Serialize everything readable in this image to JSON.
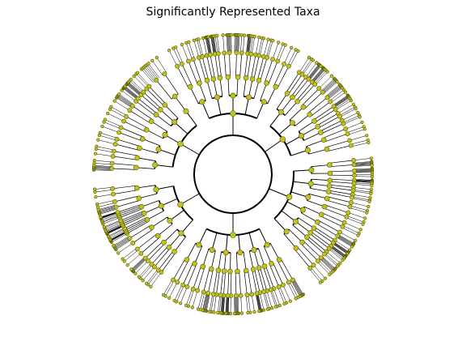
{
  "figure": {
    "title": "Significantly Represented Taxa"
  },
  "style": {
    "node_fill": "#c2c21f",
    "node_stroke": "#555500",
    "edge_color": "#000000",
    "background": "#ffffff"
  },
  "tree": {
    "layout": "radial-cladogram",
    "node_shape": "circle",
    "highlighted_edges": "thick",
    "phyla": [
      {
        "angle": 300,
        "span": 58,
        "classes": [
          3,
          4,
          3,
          5,
          2
        ]
      },
      {
        "angle": 0,
        "span": 58,
        "classes": [
          4,
          5,
          4,
          6,
          3
        ]
      },
      {
        "angle": 55,
        "span": 46,
        "classes": [
          5,
          4,
          7,
          3
        ]
      },
      {
        "angle": 112,
        "span": 60,
        "classes": [
          3,
          5,
          4,
          4,
          6,
          3
        ]
      },
      {
        "angle": 180,
        "span": 62,
        "classes": [
          4,
          6,
          3,
          5,
          4,
          3
        ]
      },
      {
        "angle": 240,
        "span": 50,
        "classes": [
          5,
          3,
          12,
          4
        ]
      }
    ]
  }
}
